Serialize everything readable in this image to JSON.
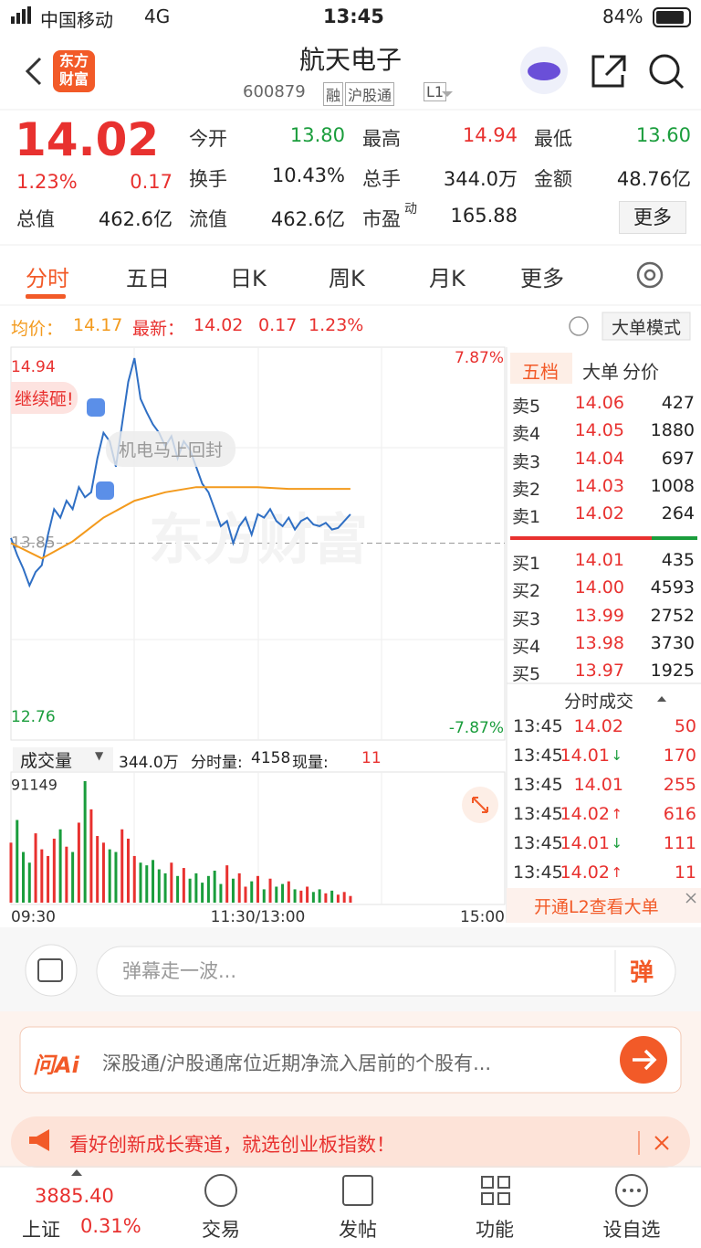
{
  "status_bar": {
    "carrier": "中国移动",
    "network": "4G",
    "time": "13:45",
    "battery": "84%"
  },
  "header": {
    "logo": "东方\n财富",
    "title": "航天电子",
    "code": "600879",
    "tags": [
      "融",
      "沪股通",
      "L1"
    ]
  },
  "quote": {
    "price": "14.02",
    "change_pct": "1.23%",
    "change": "0.17",
    "fields": [
      {
        "label": "今开",
        "value": "13.80",
        "color": "#1a9d3c"
      },
      {
        "label": "最高",
        "value": "14.94",
        "color": "#e8312f"
      },
      {
        "label": "最低",
        "value": "13.60",
        "color": "#1a9d3c"
      },
      {
        "label": "换手",
        "value": "10.43%"
      },
      {
        "label": "总手",
        "value": "344.0万"
      },
      {
        "label": "金额",
        "value": "48.76亿"
      },
      {
        "label": "总值",
        "value": "462.6亿"
      },
      {
        "label": "流值",
        "value": "462.6亿"
      },
      {
        "label": "市盈",
        "sup": "动",
        "value": "165.88"
      }
    ],
    "more": "更多"
  },
  "tabs": [
    "分时",
    "五日",
    "日K",
    "周K",
    "月K",
    "更多"
  ],
  "info_bar": {
    "avg_label": "均价：",
    "avg": "14.17",
    "latest_label": "最新：",
    "latest": "14.02",
    "change": "0.17",
    "change_pct": "1.23%",
    "mode": "大单模式"
  },
  "chart_data": [
    {
      "type": "line",
      "annotations": [
        "继续砸!",
        "机电马上回封"
      ],
      "watermark": "东方财富",
      "x": [
        "09:30",
        "09:33",
        "09:36",
        "09:39",
        "09:42",
        "09:45",
        "09:48",
        "09:51",
        "09:54",
        "09:57",
        "10:00",
        "10:03",
        "10:06",
        "10:09",
        "10:12",
        "10:15",
        "10:18",
        "10:21",
        "10:24",
        "10:27",
        "10:30",
        "10:33",
        "10:36",
        "10:39",
        "10:42",
        "10:45",
        "10:48",
        "10:51",
        "10:54",
        "10:57",
        "11:00",
        "11:03",
        "11:06",
        "11:09",
        "11:12",
        "11:15",
        "11:18",
        "11:21",
        "11:24",
        "11:27",
        "11:30",
        "13:03",
        "13:06",
        "13:09",
        "13:12",
        "13:15",
        "13:18",
        "13:21",
        "13:24",
        "13:27",
        "13:30",
        "13:33",
        "13:36",
        "13:39",
        "13:42",
        "13:45"
      ],
      "xlim": [
        "09:30",
        "15:00"
      ],
      "series": [
        {
          "name": "最新",
          "color": "#2f6fc4",
          "values": [
            13.88,
            13.78,
            13.7,
            13.6,
            13.68,
            13.72,
            13.9,
            14.05,
            14.0,
            14.1,
            14.05,
            14.18,
            14.12,
            14.15,
            14.35,
            14.5,
            14.45,
            14.3,
            14.55,
            14.8,
            14.94,
            14.7,
            14.62,
            14.55,
            14.5,
            14.42,
            14.48,
            14.35,
            14.45,
            14.4,
            14.3,
            14.2,
            14.15,
            14.05,
            13.95,
            13.98,
            13.85,
            13.95,
            14.0,
            13.9,
            14.02,
            14.0,
            14.05,
            13.98,
            13.95,
            14.0,
            13.93,
            13.98,
            14.0,
            13.96,
            13.95,
            13.97,
            13.93,
            13.94,
            13.98,
            14.02
          ]
        },
        {
          "name": "均价",
          "color": "#f39a1d",
          "x": [
            "09:30",
            "09:45",
            "10:00",
            "10:15",
            "10:30",
            "10:45",
            "11:00",
            "11:15",
            "11:30",
            "13:15",
            "13:30",
            "13:45"
          ],
          "values": [
            13.85,
            13.76,
            13.86,
            14.0,
            14.1,
            14.15,
            14.18,
            14.18,
            14.18,
            14.17,
            14.17,
            14.17
          ]
        }
      ],
      "ylim": [
        12.76,
        14.94
      ],
      "yticks": [
        12.76,
        13.85,
        14.94
      ],
      "y2lim": [
        -7.87,
        7.87
      ],
      "y2ticks": [
        {
          "value": 7.87,
          "label": "7.87%"
        },
        {
          "value": -7.87,
          "label": "-7.87%"
        }
      ]
    },
    {
      "type": "bar",
      "up_color": "#e8312f",
      "down_color": "#1a9d3c",
      "x": [
        "09:30",
        "09:33",
        "09:36",
        "09:39",
        "09:42",
        "09:45",
        "09:48",
        "09:51",
        "09:54",
        "09:57",
        "10:00",
        "10:03",
        "10:06",
        "10:09",
        "10:12",
        "10:15",
        "10:18",
        "10:21",
        "10:24",
        "10:27",
        "10:30",
        "10:33",
        "10:36",
        "10:39",
        "10:42",
        "10:45",
        "10:48",
        "10:51",
        "10:54",
        "10:57",
        "11:00",
        "11:03",
        "11:06",
        "11:09",
        "11:12",
        "11:15",
        "11:18",
        "11:21",
        "11:24",
        "11:27",
        "11:30",
        "13:03",
        "13:06",
        "13:09",
        "13:12",
        "13:15",
        "13:18",
        "13:21",
        "13:24",
        "13:27",
        "13:30",
        "13:33",
        "13:36",
        "13:39",
        "13:42",
        "13:45"
      ],
      "xlim": [
        "09:30",
        "15:00"
      ],
      "xticks": [
        "09:30",
        {
          "value": "11:30",
          "label": "11:30/13:00"
        },
        "15:00"
      ],
      "values": [
        45000,
        62000,
        38000,
        30000,
        52000,
        40000,
        35000,
        48000,
        55000,
        42000,
        38000,
        60000,
        91149,
        70000,
        50000,
        45000,
        40000,
        38000,
        55000,
        48000,
        35000,
        30000,
        28000,
        32000,
        25000,
        22000,
        30000,
        20000,
        26000,
        18000,
        22000,
        15000,
        20000,
        24000,
        14000,
        28000,
        18000,
        22000,
        12000,
        16000,
        20000,
        10000,
        18000,
        12000,
        14000,
        16000,
        10000,
        9000,
        12000,
        8000,
        10000,
        7000,
        9000,
        6000,
        8000,
        5000
      ],
      "ylim": [
        0,
        91149
      ],
      "yticks": [
        91149
      ]
    }
  ],
  "volume_bar": {
    "dropdown": "成交量",
    "total": "344.0万",
    "minute_label": "分时量:",
    "minute": "4158",
    "now_label": "现量:",
    "now": "11"
  },
  "order_book": {
    "tabs": [
      "五档",
      "大单",
      "分价"
    ],
    "asks": [
      [
        "卖5",
        "14.06",
        "427"
      ],
      [
        "卖4",
        "14.05",
        "1880"
      ],
      [
        "卖3",
        "14.04",
        "697"
      ],
      [
        "卖2",
        "14.03",
        "1008"
      ],
      [
        "卖1",
        "14.02",
        "264"
      ]
    ],
    "bids": [
      [
        "买1",
        "14.01",
        "435"
      ],
      [
        "买2",
        "14.00",
        "4593"
      ],
      [
        "买3",
        "13.99",
        "2752"
      ],
      [
        "买4",
        "13.98",
        "3730"
      ],
      [
        "买5",
        "13.97",
        "1925"
      ]
    ]
  },
  "trades": {
    "title": "分时成交",
    "rows": [
      [
        "13:45",
        "14.02",
        "",
        "50"
      ],
      [
        "13:45",
        "14.01",
        "↓",
        "170"
      ],
      [
        "13:45",
        "14.01",
        "",
        "255"
      ],
      [
        "13:45",
        "14.02",
        "↑",
        "616"
      ],
      [
        "13:45",
        "14.01",
        "↓",
        "111"
      ],
      [
        "13:45",
        "14.02",
        "↑",
        "11"
      ]
    ],
    "l2": "开通L2查看大单"
  },
  "comment": {
    "placeholder": "弹幕走一波...",
    "button": "弹"
  },
  "ai": {
    "logo": "问Ai",
    "text": "深股通/沪股通席位近期净流入居前的个股有..."
  },
  "promo": "看好创新成长赛道，就选创业板指数！",
  "bottom_nav": {
    "index_value": "3885.40",
    "index_name": "上证",
    "index_pct": "0.31%",
    "items": [
      "交易",
      "发帖",
      "功能",
      "设自选"
    ]
  }
}
